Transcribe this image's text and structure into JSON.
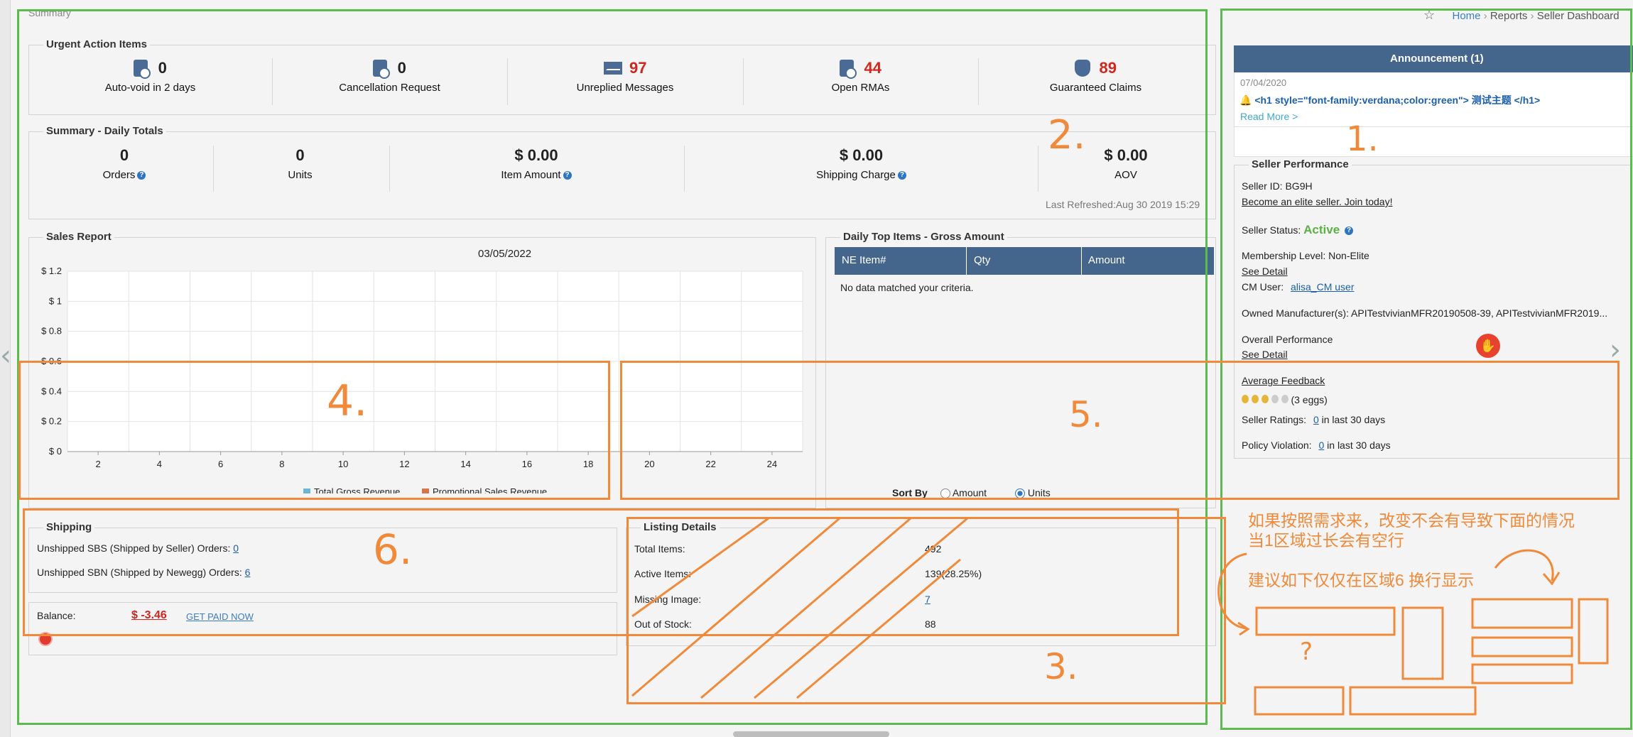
{
  "page": {
    "section_title": "Summary",
    "breadcrumb": {
      "home": "Home",
      "reports": "Reports",
      "current": "Seller Dashboard"
    }
  },
  "urgent": {
    "title": "Urgent Action Items",
    "items": [
      {
        "count": "0",
        "label": "Auto-void in 2 days",
        "icon": "clipboard-check-icon"
      },
      {
        "count": "0",
        "label": "Cancellation Request",
        "icon": "clipboard-cancel-icon"
      },
      {
        "count": "97",
        "label": "Unreplied Messages",
        "icon": "envelope-icon"
      },
      {
        "count": "44",
        "label": "Open RMAs",
        "icon": "rma-icon"
      },
      {
        "count": "89",
        "label": "Guaranteed Claims",
        "icon": "shield-claim-icon"
      }
    ]
  },
  "daily": {
    "title": "Summary - Daily Totals",
    "items": [
      {
        "value": "0",
        "label": "Orders"
      },
      {
        "value": "0",
        "label": "Units"
      },
      {
        "value": "$ 0.00",
        "label": "Item Amount"
      },
      {
        "value": "$ 0.00",
        "label": "Shipping Charge"
      },
      {
        "value": "$ 0.00",
        "label": "AOV"
      }
    ],
    "last_refreshed": "Last Refreshed:Aug 30 2019 15:29"
  },
  "sales_report": {
    "title": "Sales Report",
    "date": "03/05/2022"
  },
  "chart_data": {
    "type": "bar",
    "title": "03/05/2022",
    "categories": [
      "2",
      "4",
      "6",
      "8",
      "10",
      "12",
      "14",
      "16",
      "18",
      "20",
      "22",
      "24"
    ],
    "y_ticks": [
      "$ 0",
      "$ 0.2",
      "$ 0.4",
      "$ 0.6",
      "$ 0.8",
      "$ 1",
      "$ 1.2"
    ],
    "ylim": [
      0,
      1.2
    ],
    "grid": true,
    "legend_placement": "bottom",
    "series": [
      {
        "name": "Total Gross Revenue",
        "color": "#6cb6d6",
        "values": [
          0,
          0,
          0,
          0,
          0,
          0,
          0,
          0,
          0,
          0,
          0,
          0
        ]
      },
      {
        "name": "Promotional Sales Revenue",
        "color": "#d4764a",
        "values": [
          0,
          0,
          0,
          0,
          0,
          0,
          0,
          0,
          0,
          0,
          0,
          0
        ]
      }
    ]
  },
  "top_items": {
    "title": "Daily Top Items - Gross Amount",
    "columns": [
      "NE Item#",
      "Qty",
      "Amount"
    ],
    "empty_text": "No data matched your criteria.",
    "sort_by_label": "Sort By",
    "sort_options": [
      "Amount",
      "Units"
    ],
    "sort_selected": "Units"
  },
  "shipping": {
    "title": "Shipping",
    "sbs_label": "Unshipped SBS (Shipped by Seller) Orders:",
    "sbs_value": "0",
    "sbn_label": "Unshipped SBN (Shipped by Newegg) Orders:",
    "sbn_value": "6",
    "balance_label": "Balance:",
    "balance_value": "$ -3.46",
    "get_paid": "GET PAID NOW"
  },
  "listing": {
    "title": "Listing Details",
    "rows": [
      {
        "label": "Total Items:",
        "value": "492"
      },
      {
        "label": "Active Items:",
        "value": "139(28.25%)"
      },
      {
        "label": "Missing Image:",
        "value": "7"
      },
      {
        "label": "Out of Stock:",
        "value": "88"
      }
    ]
  },
  "announcement": {
    "header": "Announcement (1)",
    "date": "07/04/2020",
    "text": "<h1 style=\"font-family:verdana;color:green\"> 测试主题 </h1>",
    "read_more": "Read More >"
  },
  "seller_performance": {
    "title": "Seller Performance",
    "seller_id": "Seller ID: BG9H",
    "elite_link": "Become an elite seller. Join today!",
    "status_label": "Seller Status:",
    "status_value": "Active",
    "membership": "Membership Level:  Non-Elite",
    "see_detail": "See Detail",
    "cm_label": "CM User:",
    "cm_value": "alisa_CM user",
    "owned": "Owned Manufacturer(s):  APITestvivianMFR20190508-39, APITestvivianMFR2019...",
    "overall": "Overall Performance",
    "see_detail_2": "See Detail",
    "avg_feedback": "Average Feedback",
    "eggs": "(3 eggs)",
    "ratings_label": "Seller Ratings:",
    "ratings_value": "0",
    "ratings_suffix": "in last 30 days",
    "policy_label": "Policy Violation:",
    "policy_value": "0",
    "policy_suffix": "in last 30 days"
  },
  "annotations": {
    "n1": "1.",
    "n2": "2.",
    "n3": "3.",
    "n4": "4.",
    "n5": "5.",
    "n6": "6.",
    "q": "?",
    "note_line1": "如果按照需求来，改变不会有导致下面的情况",
    "note_line2": "当1区域过长会有空行",
    "note_line3": "建议如下仅仅在区域6 换行显示"
  }
}
